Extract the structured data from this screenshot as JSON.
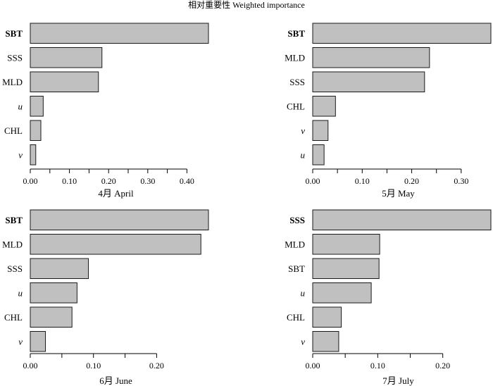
{
  "figure_title": "相对重要性 Weighted importance",
  "chart_data": [
    {
      "type": "bar",
      "orientation": "horizontal",
      "xlabel": "4月 April",
      "categories": [
        "SBT",
        "SSS",
        "MLD",
        "u",
        "CHL",
        "v"
      ],
      "values": [
        0.455,
        0.183,
        0.174,
        0.033,
        0.027,
        0.014
      ],
      "highlighted": "SBT",
      "italic_categories": [
        "u",
        "v"
      ],
      "xlim": [
        0,
        0.455
      ],
      "ticks": [
        0.0,
        0.1,
        0.2,
        0.3,
        0.4
      ],
      "tick_labels": [
        "0.00",
        "0.10",
        "0.20",
        "0.30",
        "0.40"
      ]
    },
    {
      "type": "bar",
      "orientation": "horizontal",
      "xlabel": "5月 May",
      "categories": [
        "SBT",
        "MLD",
        "SSS",
        "CHL",
        "v",
        "u"
      ],
      "values": [
        0.36,
        0.236,
        0.226,
        0.046,
        0.031,
        0.023
      ],
      "highlighted": "SBT",
      "italic_categories": [
        "u",
        "v"
      ],
      "xlim": [
        0,
        0.36
      ],
      "ticks": [
        0.0,
        0.1,
        0.2,
        0.3
      ],
      "tick_labels": [
        "0.00",
        "0.10",
        "0.20",
        "0.30"
      ]
    },
    {
      "type": "bar",
      "orientation": "horizontal",
      "xlabel": "6月 June",
      "categories": [
        "SBT",
        "MLD",
        "SSS",
        "u",
        "CHL",
        "v"
      ],
      "values": [
        0.282,
        0.27,
        0.092,
        0.074,
        0.066,
        0.024
      ],
      "highlighted": "SBT",
      "italic_categories": [
        "u",
        "v"
      ],
      "xlim": [
        0,
        0.282
      ],
      "ticks": [
        0.0,
        0.1,
        0.2
      ],
      "tick_labels": [
        "0.00",
        "0.10",
        "0.20"
      ]
    },
    {
      "type": "bar",
      "orientation": "horizontal",
      "xlabel": "7月 July",
      "categories": [
        "SSS",
        "MLD",
        "SBT",
        "u",
        "CHL",
        "v"
      ],
      "values": [
        0.274,
        0.103,
        0.102,
        0.09,
        0.044,
        0.04
      ],
      "highlighted": "SSS",
      "italic_categories": [
        "u",
        "v"
      ],
      "xlim": [
        0,
        0.274
      ],
      "ticks": [
        0.0,
        0.1,
        0.2
      ],
      "tick_labels": [
        "0.00",
        "0.10",
        "0.20"
      ]
    }
  ]
}
